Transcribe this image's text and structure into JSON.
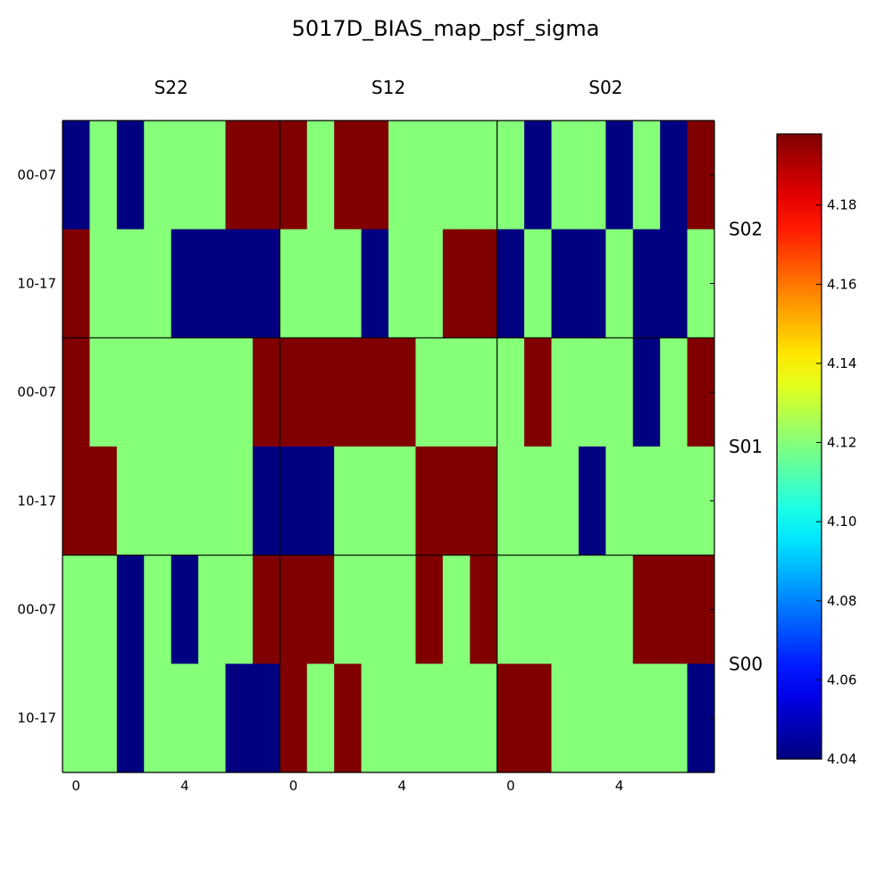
{
  "chart_data": {
    "type": "heatmap",
    "title": "5017D_BIAS_map_psf_sigma",
    "colormap": "jet",
    "colorbar": {
      "min": 4.04,
      "max": 4.198,
      "ticks": [
        "4.04",
        "4.06",
        "4.08",
        "4.10",
        "4.12",
        "4.14",
        "4.16",
        "4.18"
      ]
    },
    "columns": [
      "S22",
      "S12",
      "S02"
    ],
    "rows": [
      "S02",
      "S01",
      "S00"
    ],
    "y_tick_labels": [
      "00-07",
      "10-17"
    ],
    "x_tick_labels": [
      "0",
      "4"
    ],
    "x_tick_values": [
      0,
      4
    ],
    "cells": [
      {
        "row": "S02",
        "col": "S22",
        "values": [
          [
            4.04,
            4.12,
            4.04,
            4.12,
            4.12,
            4.12,
            4.198,
            4.198
          ],
          [
            4.198,
            4.12,
            4.12,
            4.12,
            4.04,
            4.04,
            4.04,
            4.04
          ]
        ]
      },
      {
        "row": "S02",
        "col": "S12",
        "values": [
          [
            4.198,
            4.12,
            4.198,
            4.198,
            4.12,
            4.12,
            4.12,
            4.12
          ],
          [
            4.12,
            4.12,
            4.12,
            4.04,
            4.12,
            4.12,
            4.198,
            4.198
          ]
        ]
      },
      {
        "row": "S02",
        "col": "S02",
        "values": [
          [
            4.12,
            4.04,
            4.12,
            4.12,
            4.04,
            4.12,
            4.04,
            4.198
          ],
          [
            4.04,
            4.12,
            4.04,
            4.04,
            4.12,
            4.04,
            4.04,
            4.12
          ]
        ]
      },
      {
        "row": "S01",
        "col": "S22",
        "values": [
          [
            4.198,
            4.12,
            4.12,
            4.12,
            4.12,
            4.12,
            4.12,
            4.198
          ],
          [
            4.198,
            4.198,
            4.12,
            4.12,
            4.12,
            4.12,
            4.12,
            4.04
          ]
        ]
      },
      {
        "row": "S01",
        "col": "S12",
        "values": [
          [
            4.198,
            4.198,
            4.198,
            4.198,
            4.198,
            4.12,
            4.12,
            4.12
          ],
          [
            4.04,
            4.04,
            4.12,
            4.12,
            4.12,
            4.198,
            4.198,
            4.198
          ]
        ]
      },
      {
        "row": "S01",
        "col": "S02",
        "values": [
          [
            4.12,
            4.198,
            4.12,
            4.12,
            4.12,
            4.04,
            4.12,
            4.198
          ],
          [
            4.12,
            4.12,
            4.12,
            4.04,
            4.12,
            4.12,
            4.12,
            4.12
          ]
        ]
      },
      {
        "row": "S00",
        "col": "S22",
        "values": [
          [
            4.12,
            4.12,
            4.04,
            4.12,
            4.04,
            4.12,
            4.12,
            4.198
          ],
          [
            4.12,
            4.12,
            4.04,
            4.12,
            4.12,
            4.12,
            4.04,
            4.04
          ]
        ]
      },
      {
        "row": "S00",
        "col": "S12",
        "values": [
          [
            4.198,
            4.198,
            4.12,
            4.12,
            4.12,
            4.198,
            4.12,
            4.198
          ],
          [
            4.198,
            4.12,
            4.198,
            4.12,
            4.12,
            4.12,
            4.12,
            4.12
          ]
        ]
      },
      {
        "row": "S00",
        "col": "S02",
        "values": [
          [
            4.12,
            4.12,
            4.12,
            4.12,
            4.12,
            4.198,
            4.198,
            4.198
          ],
          [
            4.198,
            4.198,
            4.12,
            4.12,
            4.12,
            4.12,
            4.12,
            4.04
          ]
        ]
      }
    ]
  }
}
